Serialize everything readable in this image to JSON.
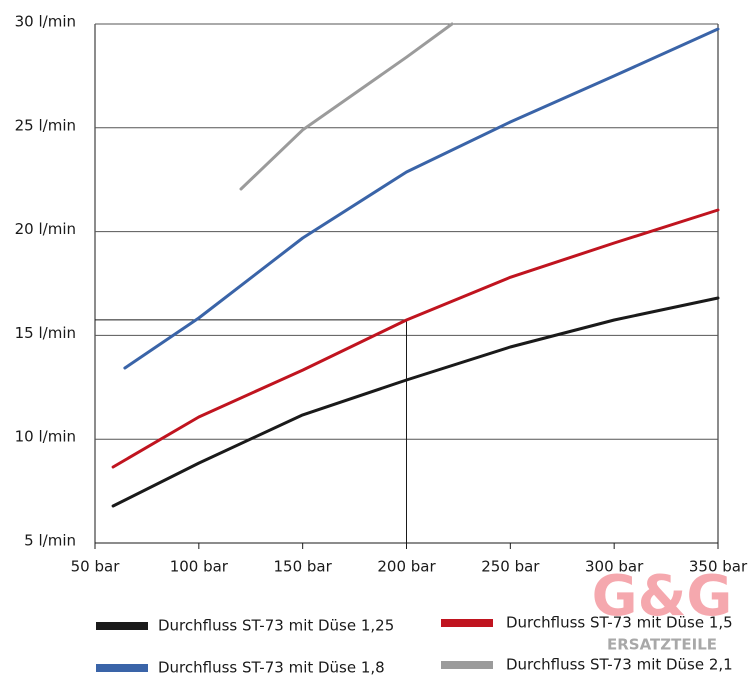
{
  "chart_data": {
    "type": "line",
    "xlim": [
      50,
      350
    ],
    "xticks": [
      {
        "value": 50,
        "label": "50 bar"
      },
      {
        "value": 100,
        "label": "100 bar"
      },
      {
        "value": 150,
        "label": "150 bar"
      },
      {
        "value": 200,
        "label": "200 bar"
      },
      {
        "value": 250,
        "label": "250 bar"
      },
      {
        "value": 300,
        "label": "300 bar"
      },
      {
        "value": 350,
        "label": "350 bar"
      }
    ],
    "ylim": [
      5,
      30
    ],
    "yticks": [
      {
        "value": 5,
        "label": "5 l/min"
      },
      {
        "value": 10,
        "label": "10 l/min"
      },
      {
        "value": 15,
        "label": "15 l/min"
      },
      {
        "value": 20,
        "label": "20 l/min"
      },
      {
        "value": 25,
        "label": "25 l/min"
      },
      {
        "value": 30,
        "label": "30 l/min"
      }
    ],
    "grid": true,
    "reference": {
      "x": 200,
      "y": 15.75
    },
    "series": [
      {
        "name": "Durchfluss ST-73 mit Düse 1,25",
        "color": "#1a1a1a",
        "x": [
          58.7,
          100,
          150,
          200,
          250,
          300,
          350
        ],
        "values": [
          6.78,
          8.85,
          11.17,
          12.85,
          14.44,
          15.74,
          16.8
        ]
      },
      {
        "name": "Durchfluss ST-73 mit Düse 1,8",
        "color": "#3a64a8",
        "x": [
          64.4,
          100,
          150,
          200,
          250,
          300,
          350
        ],
        "values": [
          13.43,
          15.84,
          19.69,
          22.87,
          25.28,
          27.5,
          29.76
        ]
      },
      {
        "name": "Durchfluss ST-73 mit Düse 1,5",
        "color": "#c0141f",
        "x": [
          58.7,
          100,
          150,
          200,
          250,
          300,
          350
        ],
        "values": [
          8.66,
          11.07,
          13.33,
          15.74,
          17.8,
          19.45,
          21.04
        ]
      },
      {
        "name": "Durchfluss ST-73 mit Düse 2,1",
        "color": "#9b9b9b",
        "x": [
          120.3,
          150,
          200,
          221.9
        ],
        "values": [
          22.05,
          24.9,
          28.4,
          30
        ]
      }
    ]
  },
  "watermark": {
    "logo": "G&G",
    "text": "ERSATZTEILE"
  }
}
